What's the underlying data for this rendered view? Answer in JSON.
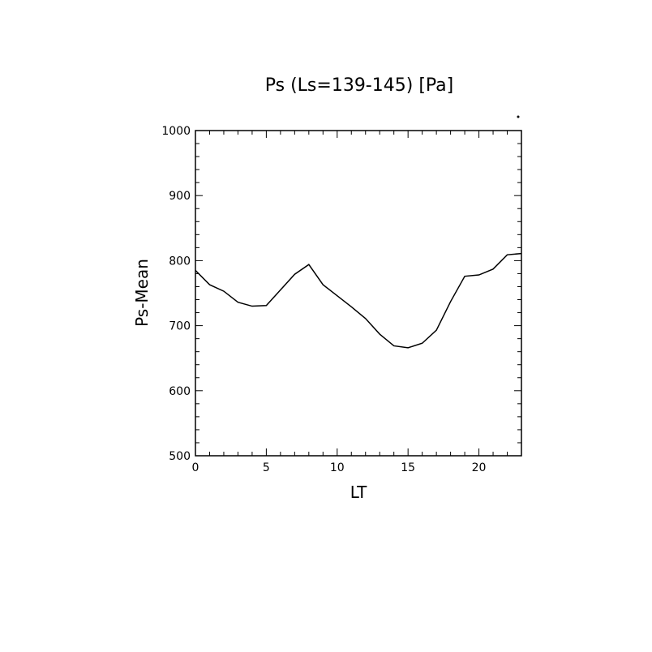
{
  "chart_data": {
    "type": "line",
    "title": "Ps (Ls=139-145) [Pa]",
    "xlabel": "LT",
    "ylabel": "Ps-Mean",
    "xlim": [
      0,
      23
    ],
    "ylim": [
      500,
      1000
    ],
    "xticks": [
      0,
      5,
      10,
      15,
      20
    ],
    "yticks": [
      500,
      600,
      700,
      800,
      900,
      1000
    ],
    "grid": false,
    "legend": "none",
    "series": [
      {
        "x": [
          0,
          1,
          2,
          3,
          4,
          5,
          6,
          7,
          8,
          9,
          10,
          11,
          12,
          13,
          14,
          15,
          16,
          17,
          18,
          19,
          20,
          21,
          22,
          23
        ],
        "y": [
          785,
          763,
          753,
          736,
          730,
          731,
          755,
          779,
          794,
          763,
          746,
          729,
          711,
          687,
          669,
          666,
          673,
          693,
          737,
          776,
          778,
          787,
          809,
          811
        ],
        "color": "#000000"
      }
    ]
  }
}
